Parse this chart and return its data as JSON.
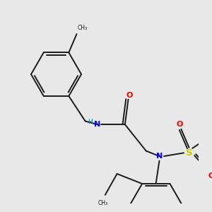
{
  "background_color": "#e8e8e8",
  "bond_color": "#1a1a1a",
  "N_color": "#0000ff",
  "O_color": "#ff0000",
  "S_color": "#cccc00",
  "H_color": "#008080",
  "figsize": [
    3.0,
    3.0
  ],
  "dpi": 100,
  "xlim": [
    0,
    300
  ],
  "ylim": [
    0,
    300
  ]
}
